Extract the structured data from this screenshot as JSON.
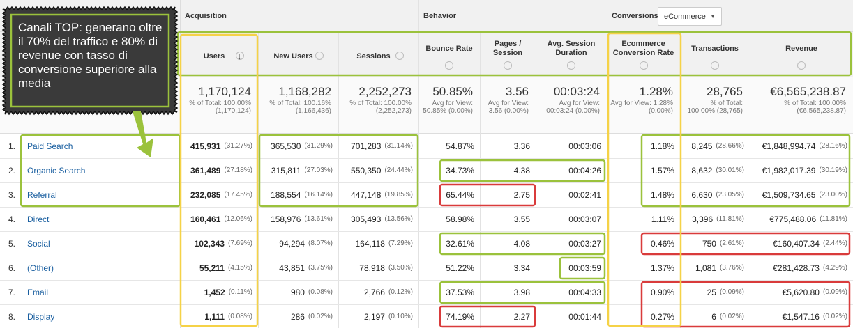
{
  "groups": [
    "Acquisition",
    "Behavior",
    "Conversions"
  ],
  "dropdown": "eCommerce",
  "columns": [
    "Users",
    "New Users",
    "Sessions",
    "Bounce Rate",
    "Pages / Session",
    "Avg. Session Duration",
    "Ecommerce Conversion Rate",
    "Transactions",
    "Revenue"
  ],
  "totals": [
    {
      "value": "1,170,124",
      "note": "% of Total: 100.00% (1,170,124)"
    },
    {
      "value": "1,168,282",
      "note": "% of Total: 100.16% (1,166,436)"
    },
    {
      "value": "2,252,273",
      "note": "% of Total: 100.00% (2,252,273)"
    },
    {
      "value": "50.85%",
      "note": "Avg for View: 50.85% (0.00%)"
    },
    {
      "value": "3.56",
      "note": "Avg for View: 3.56 (0.00%)"
    },
    {
      "value": "00:03:24",
      "note": "Avg for View: 00:03:24 (0.00%)"
    },
    {
      "value": "1.28%",
      "note": "Avg for View: 1.28% (0.00%)"
    },
    {
      "value": "28,765",
      "note": "% of Total: 100.00% (28,765)"
    },
    {
      "value": "€6,565,238.87",
      "note": "% of Total: 100.00% (€6,565,238.87)"
    }
  ],
  "rows": [
    {
      "index": "1.",
      "name": "Paid Search",
      "cells": [
        [
          "415,931",
          "(31.27%)"
        ],
        [
          "365,530",
          "(31.29%)"
        ],
        [
          "701,283",
          "(31.14%)"
        ],
        [
          "54.87%"
        ],
        [
          "3.36"
        ],
        [
          "00:03:06"
        ],
        [
          "1.18%"
        ],
        [
          "8,245",
          "(28.66%)"
        ],
        [
          "€1,848,994.74",
          "(28.16%)"
        ]
      ]
    },
    {
      "index": "2.",
      "name": "Organic Search",
      "cells": [
        [
          "361,489",
          "(27.18%)"
        ],
        [
          "315,811",
          "(27.03%)"
        ],
        [
          "550,350",
          "(24.44%)"
        ],
        [
          "34.73%"
        ],
        [
          "4.38"
        ],
        [
          "00:04:26"
        ],
        [
          "1.57%"
        ],
        [
          "8,632",
          "(30.01%)"
        ],
        [
          "€1,982,017.39",
          "(30.19%)"
        ]
      ]
    },
    {
      "index": "3.",
      "name": "Referral",
      "cells": [
        [
          "232,085",
          "(17.45%)"
        ],
        [
          "188,554",
          "(16.14%)"
        ],
        [
          "447,148",
          "(19.85%)"
        ],
        [
          "65.44%"
        ],
        [
          "2.75"
        ],
        [
          "00:02:41"
        ],
        [
          "1.48%"
        ],
        [
          "6,630",
          "(23.05%)"
        ],
        [
          "€1,509,734.65",
          "(23.00%)"
        ]
      ]
    },
    {
      "index": "4.",
      "name": "Direct",
      "cells": [
        [
          "160,461",
          "(12.06%)"
        ],
        [
          "158,976",
          "(13.61%)"
        ],
        [
          "305,493",
          "(13.56%)"
        ],
        [
          "58.98%"
        ],
        [
          "3.55"
        ],
        [
          "00:03:07"
        ],
        [
          "1.11%"
        ],
        [
          "3,396",
          "(11.81%)"
        ],
        [
          "€775,488.06",
          "(11.81%)"
        ]
      ]
    },
    {
      "index": "5.",
      "name": "Social",
      "cells": [
        [
          "102,343",
          "(7.69%)"
        ],
        [
          "94,294",
          "(8.07%)"
        ],
        [
          "164,118",
          "(7.29%)"
        ],
        [
          "32.61%"
        ],
        [
          "4.08"
        ],
        [
          "00:03:27"
        ],
        [
          "0.46%"
        ],
        [
          "750",
          "(2.61%)"
        ],
        [
          "€160,407.34",
          "(2.44%)"
        ]
      ]
    },
    {
      "index": "6.",
      "name": "(Other)",
      "cells": [
        [
          "55,211",
          "(4.15%)"
        ],
        [
          "43,851",
          "(3.75%)"
        ],
        [
          "78,918",
          "(3.50%)"
        ],
        [
          "51.22%"
        ],
        [
          "3.34"
        ],
        [
          "00:03:59"
        ],
        [
          "1.37%"
        ],
        [
          "1,081",
          "(3.76%)"
        ],
        [
          "€281,428.73",
          "(4.29%)"
        ]
      ]
    },
    {
      "index": "7.",
      "name": "Email",
      "cells": [
        [
          "1,452",
          "(0.11%)"
        ],
        [
          "980",
          "(0.08%)"
        ],
        [
          "2,766",
          "(0.12%)"
        ],
        [
          "37.53%"
        ],
        [
          "3.98"
        ],
        [
          "00:04:33"
        ],
        [
          "0.90%"
        ],
        [
          "25",
          "(0.09%)"
        ],
        [
          "€5,620.80",
          "(0.09%)"
        ]
      ]
    },
    {
      "index": "8.",
      "name": "Display",
      "cells": [
        [
          "1,111",
          "(0.08%)"
        ],
        [
          "286",
          "(0.02%)"
        ],
        [
          "2,197",
          "(0.10%)"
        ],
        [
          "74.19%"
        ],
        [
          "2.27"
        ],
        [
          "00:01:44"
        ],
        [
          "0.27%"
        ],
        [
          "6",
          "(0.02%)"
        ],
        [
          "€1,547.16",
          "(0.02%)"
        ]
      ]
    }
  ],
  "callout": "Canali TOP: generano oltre il 70% del traffico e 80% di revenue con tasso di conversione superiore alla media"
}
